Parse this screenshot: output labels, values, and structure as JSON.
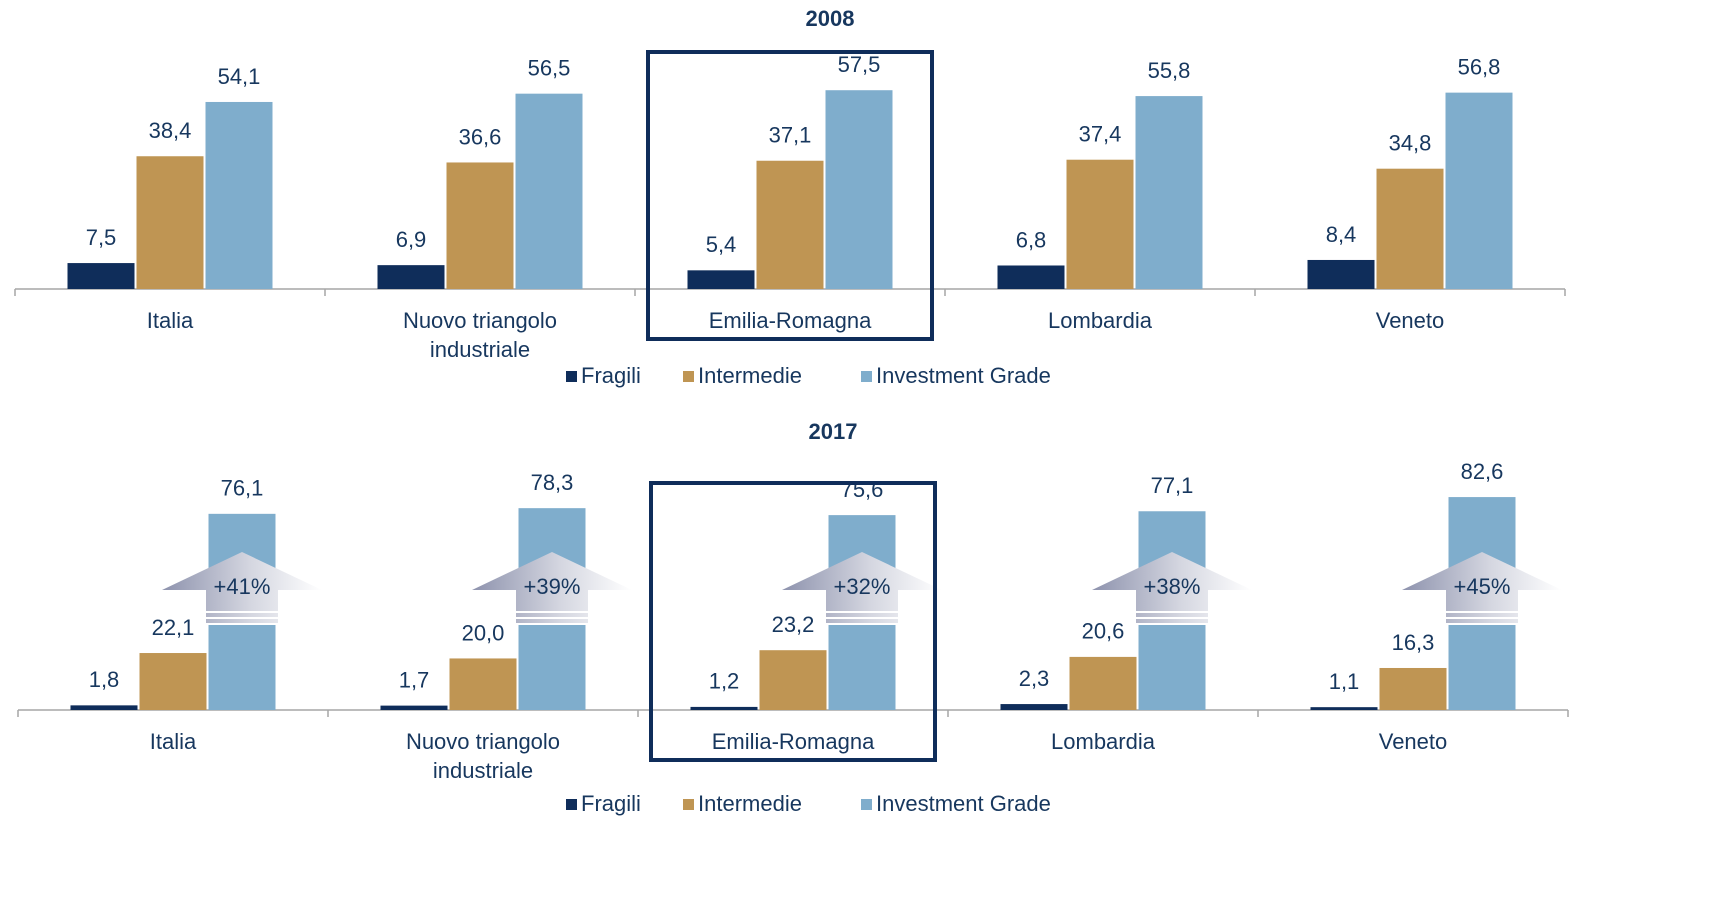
{
  "chart_data": [
    {
      "type": "bar",
      "title": "2008",
      "categories": [
        "Italia",
        "Nuovo triangolo industriale",
        "Emilia-Romagna",
        "Lombardia",
        "Veneto"
      ],
      "series": [
        {
          "name": "Fragili",
          "color": "#0f2d5a",
          "values": [
            7.5,
            6.9,
            5.4,
            6.8,
            8.4
          ],
          "value_labels": [
            "7,5",
            "6,9",
            "5,4",
            "6,8",
            "8,4"
          ]
        },
        {
          "name": "Intermedie",
          "color": "#bf9553",
          "values": [
            38.4,
            36.6,
            37.1,
            37.4,
            34.8
          ],
          "value_labels": [
            "38,4",
            "36,6",
            "37,1",
            "37,4",
            "34,8"
          ]
        },
        {
          "name": "Investment Grade",
          "color": "#7fadcc",
          "values": [
            54.1,
            56.5,
            57.5,
            55.8,
            56.8
          ],
          "value_labels": [
            "54,1",
            "56,5",
            "57,5",
            "55,8",
            "56,8"
          ]
        }
      ],
      "ylim": [
        0,
        70
      ]
    },
    {
      "type": "bar",
      "title": "2017",
      "categories": [
        "Italia",
        "Nuovo triangolo industriale",
        "Emilia-Romagna",
        "Lombardia",
        "Veneto"
      ],
      "series": [
        {
          "name": "Fragili",
          "color": "#0f2d5a",
          "values": [
            1.8,
            1.7,
            1.2,
            2.3,
            1.1
          ],
          "value_labels": [
            "1,8",
            "1,7",
            "1,2",
            "2,3",
            "1,1"
          ]
        },
        {
          "name": "Intermedie",
          "color": "#bf9553",
          "values": [
            22.1,
            20.0,
            23.2,
            20.6,
            16.3
          ],
          "value_labels": [
            "22,1",
            "20,0",
            "23,2",
            "20,6",
            "16,3"
          ]
        },
        {
          "name": "Investment Grade",
          "color": "#7fadcc",
          "values": [
            76.1,
            78.3,
            75.6,
            77.1,
            82.6
          ],
          "value_labels": [
            "76,1",
            "78,3",
            "75,6",
            "77,1",
            "82,6"
          ]
        }
      ],
      "annotations": [
        "+41%",
        "+39%",
        "+32%",
        "+38%",
        "+45%"
      ],
      "ylim": [
        0,
        90
      ]
    }
  ]
}
